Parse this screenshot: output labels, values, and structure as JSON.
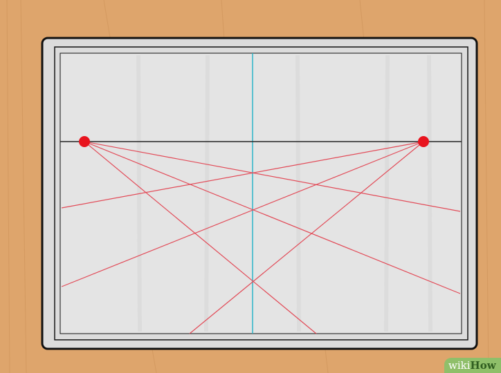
{
  "colors": {
    "wood": "#dea56c",
    "wood_grain": "#c98e55",
    "board_fill": "#dcdcdc",
    "board_edge": "#111111",
    "horizon_line": "#222222",
    "center_guide": "#2bb3c8",
    "perspective_lines": "#e24a57",
    "vanishing_points": "#e8141e"
  },
  "diagram": {
    "type": "two-point perspective guide",
    "vanishing_point_count": 2,
    "perspective_lines_per_vanishing_point": 3
  },
  "watermark": {
    "brand_prefix": "wiki",
    "brand_suffix": "How"
  }
}
